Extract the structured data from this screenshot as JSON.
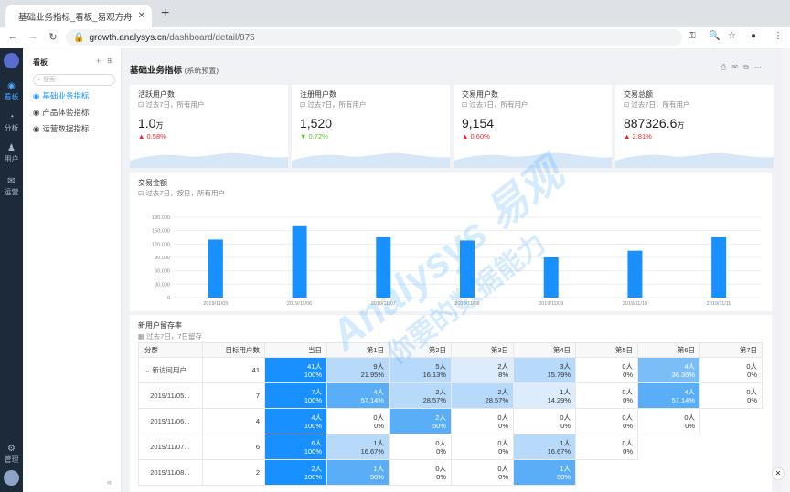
{
  "browser": {
    "tab_title": "基础业务指标_看板_易观方舟",
    "new_tab": "+",
    "url_host": "growth.analysys.cn",
    "url_path": "/dashboard/detail/875"
  },
  "leftnav": [
    {
      "label": "看板",
      "icon": "dashboard-icon"
    },
    {
      "label": "分析",
      "icon": "pie-icon"
    },
    {
      "label": "用户",
      "icon": "users-icon"
    },
    {
      "label": "运营",
      "icon": "mail-icon"
    },
    {
      "label": "管理",
      "icon": "gear-icon"
    }
  ],
  "sidebar": {
    "title": "看板",
    "search_placeholder": "搜索",
    "items": [
      {
        "label": "基础业务指标"
      },
      {
        "label": "产品体验指标"
      },
      {
        "label": "运营数据指标"
      }
    ]
  },
  "dashboard": {
    "title": "基础业务指标",
    "subtitle": "(系统预置)"
  },
  "kpis": [
    {
      "title": "活跃用户数",
      "sub": "过去7日，所有用户",
      "value": "1.0",
      "unit": "万",
      "change": "0.58%",
      "dir": "up"
    },
    {
      "title": "注册用户数",
      "sub": "过去7日，所有用户",
      "value": "1,520",
      "unit": "",
      "change": "0.72%",
      "dir": "down"
    },
    {
      "title": "交易用户数",
      "sub": "过去7日，所有用户",
      "value": "9,154",
      "unit": "",
      "change": "0.60%",
      "dir": "up"
    },
    {
      "title": "交易总额",
      "sub": "过去7日，所有用户",
      "value": "887326.6",
      "unit": "万",
      "change": "2.81%",
      "dir": "up"
    }
  ],
  "chart_data": {
    "type": "bar",
    "title": "交易金额",
    "subtitle": "过去7日，按日，所有用户",
    "categories": [
      "2019/11/05",
      "2019/11/06",
      "2019/11/07",
      "2019/11/08",
      "2019/11/09",
      "2019/11/10",
      "2019/11/11"
    ],
    "values": [
      130000,
      160000,
      135000,
      128000,
      90000,
      105000,
      135000
    ],
    "yticks": [
      "180,000",
      "150,000",
      "120,000",
      "90,000",
      "60,000",
      "30,000",
      "0"
    ],
    "ylim": [
      0,
      180000
    ],
    "color": "#1890ff"
  },
  "retention": {
    "title": "新用户留存率",
    "sub": "过去7日，7日留存",
    "headers": [
      "分群",
      "目标用户数",
      "当日",
      "第1日",
      "第2日",
      "第3日",
      "第4日",
      "第5日",
      "第6日",
      "第7日"
    ],
    "rows": [
      {
        "group": "新访问用户",
        "target": "41",
        "cells": [
          [
            "41人",
            "100%"
          ],
          [
            "9人",
            "21.95%"
          ],
          [
            "5人",
            "16.13%"
          ],
          [
            "2人",
            "8%"
          ],
          [
            "3人",
            "15.79%"
          ],
          [
            "0人",
            "0%"
          ],
          [
            "4人",
            "36.36%"
          ],
          [
            "0人",
            "0%"
          ]
        ]
      },
      {
        "group": "2019/11/05...",
        "target": "7",
        "cells": [
          [
            "7人",
            "100%"
          ],
          [
            "4人",
            "57.14%"
          ],
          [
            "2人",
            "28.57%"
          ],
          [
            "2人",
            "28.57%"
          ],
          [
            "1人",
            "14.29%"
          ],
          [
            "0人",
            "0%"
          ],
          [
            "4人",
            "57.14%"
          ],
          [
            "0人",
            "0%"
          ]
        ]
      },
      {
        "group": "2019/11/06...",
        "target": "4",
        "cells": [
          [
            "4人",
            "100%"
          ],
          [
            "0人",
            "0%"
          ],
          [
            "2人",
            "50%"
          ],
          [
            "0人",
            "0%"
          ],
          [
            "0人",
            "0%"
          ],
          [
            "0人",
            "0%"
          ],
          [
            "0人",
            "0%"
          ]
        ]
      },
      {
        "group": "2019/11/07...",
        "target": "6",
        "cells": [
          [
            "6人",
            "100%"
          ],
          [
            "1人",
            "16.67%"
          ],
          [
            "0人",
            "0%"
          ],
          [
            "0人",
            "0%"
          ],
          [
            "1人",
            "16.67%"
          ],
          [
            "0人",
            "0%"
          ]
        ]
      },
      {
        "group": "2019/11/08...",
        "target": "2",
        "cells": [
          [
            "2人",
            "100%"
          ],
          [
            "1人",
            "50%"
          ],
          [
            "0人",
            "0%"
          ],
          [
            "0人",
            "0%"
          ],
          [
            "1人",
            "50%"
          ]
        ]
      }
    ]
  },
  "watermark": {
    "brand": "Analysys 易观",
    "slogan": "你要的数据能力"
  }
}
